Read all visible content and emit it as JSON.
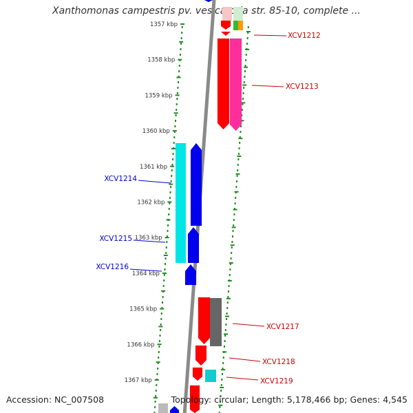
{
  "title": "Xanthomonas campestris pv. vesicatoria str. 85-10, complete ...",
  "footer": {
    "accession": "Accession: NC_007508",
    "summary": "Topology: circular; Length: 5,178,466 bp; Genes: 4,545"
  },
  "colors": {
    "backbone": "#8a8a8a",
    "tick": "#1f8a1f",
    "label_forward": "#cc0000",
    "label_reverse": "#0000cc"
  },
  "scale": {
    "unit": "kbp",
    "labels": [
      {
        "kbp": 1357,
        "text": "1357 kbp"
      },
      {
        "kbp": 1358,
        "text": "1358 kbp"
      },
      {
        "kbp": 1359,
        "text": "1359 kbp"
      },
      {
        "kbp": 1360,
        "text": "1360 kbp"
      },
      {
        "kbp": 1361,
        "text": "1361 kbp"
      },
      {
        "kbp": 1362,
        "text": "1362 kbp"
      },
      {
        "kbp": 1363,
        "text": "1363 kbp"
      },
      {
        "kbp": 1364,
        "text": "1364 kbp"
      },
      {
        "kbp": 1365,
        "text": "1365 kbp"
      },
      {
        "kbp": 1366,
        "text": "1366 kbp"
      },
      {
        "kbp": 1367,
        "text": "1367 kbp"
      }
    ]
  },
  "gene_labels": [
    {
      "text": "XCV1212",
      "strand": "forward"
    },
    {
      "text": "XCV1213",
      "strand": "forward"
    },
    {
      "text": "XCV1214",
      "strand": "reverse"
    },
    {
      "text": "XCV1215",
      "strand": "reverse"
    },
    {
      "text": "XCV1216",
      "strand": "reverse"
    },
    {
      "text": "XCV1217",
      "strand": "forward"
    },
    {
      "text": "XCV1218",
      "strand": "forward"
    },
    {
      "text": "XCV1219",
      "strand": "forward"
    }
  ]
}
